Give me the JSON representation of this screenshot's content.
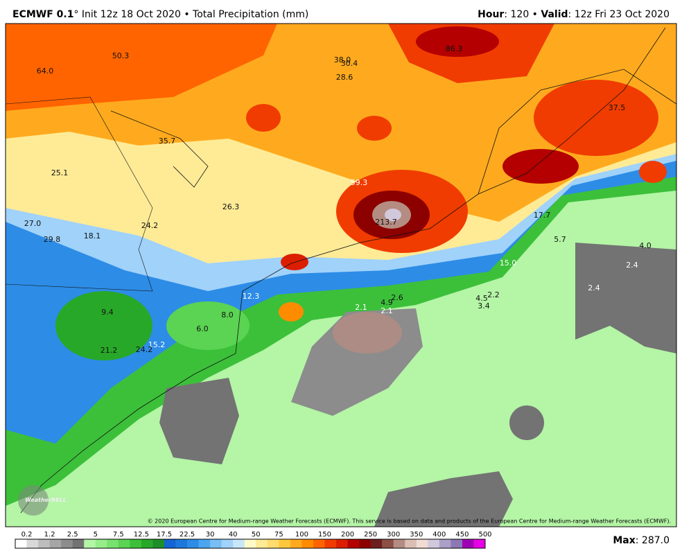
{
  "header": {
    "model": "ECMWF 0.1",
    "left_rest": "° Init 12z 18 Oct 2020 • Total Precipitation (mm)",
    "hour_label": "Hour",
    "hour_rest": ": 120 • ",
    "valid_label": "Valid",
    "valid_rest": ": 12z Fri 23 Oct 2020"
  },
  "map": {
    "labels": [
      "64.0",
      "50.3",
      "86.3",
      "38.0",
      "30.4",
      "28.6",
      "37.5",
      "35.7",
      "25.1",
      "59.3",
      "26.3",
      "27.0",
      "24.2",
      "213.7",
      "17.7",
      "29.8",
      "18.1",
      "5.7",
      "4.0",
      "15.0",
      "2.4",
      "2.4",
      "12.3",
      "2.6",
      "4.9",
      "4.5",
      "2.2",
      "3.4",
      "2.1",
      "2.1",
      "9.4",
      "8.0",
      "6.0",
      "15.2",
      "21.2",
      "24.2"
    ],
    "logo": "WeatherBELL",
    "copyright": "© 2020 European Centre for Medium-range Weather Forecasts (ECMWF). This service is based on data and products of the European Centre for Medium-range Weather Forecasts (ECMWF)."
  },
  "colorbar": {
    "labels": [
      "0.2",
      "1.2",
      "2.5",
      "5",
      "7.5",
      "12.5",
      "17.5",
      "22.5",
      "30",
      "40",
      "50",
      "75",
      "100",
      "150",
      "200",
      "250",
      "300",
      "350",
      "400",
      "450",
      "500"
    ],
    "colors": [
      "#ffffff",
      "#d9d9d9",
      "#bdbdbd",
      "#a6a6a6",
      "#8c8c8c",
      "#737373",
      "#b4f5a6",
      "#96ed8a",
      "#78e26e",
      "#5ad452",
      "#3cc03a",
      "#28a828",
      "#1e8f28",
      "#1464d2",
      "#1e78dc",
      "#2d8ce6",
      "#4ba5f0",
      "#78bef5",
      "#a0d2fa",
      "#c8e6fa",
      "#fffac8",
      "#ffeb96",
      "#ffdc6e",
      "#ffc83c",
      "#ffaa1e",
      "#ff8c00",
      "#ff6400",
      "#f03c00",
      "#dc1e00",
      "#b40000",
      "#8c0000",
      "#6e1e1e",
      "#8c5046",
      "#b48c82",
      "#dcbeb4",
      "#f0dcd2",
      "#d2c8dc",
      "#aaa0c8",
      "#8c78b4",
      "#a000b4",
      "#e600e6"
    ]
  },
  "footer": {
    "max_label": "Max",
    "max_rest": ": 287.0"
  }
}
